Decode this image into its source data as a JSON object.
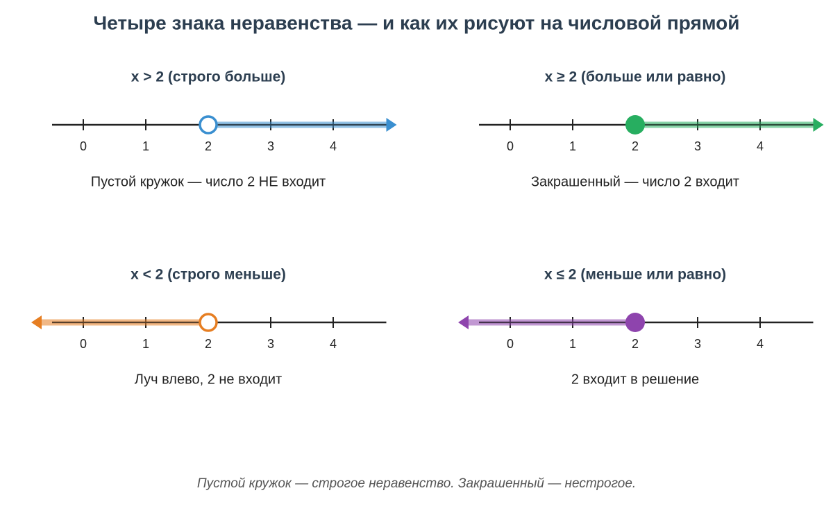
{
  "title": "Четыре знака неравенства — и как их рисуют на числовой прямой",
  "panels": [
    {
      "title": "x > 2 (строго больше)",
      "ticks": [
        0,
        1,
        2,
        3,
        4
      ],
      "xlim": [
        -0.5,
        4.85
      ],
      "point": 2,
      "closed": false,
      "direction": "right",
      "color": "#3a8fd0",
      "caption": "Пустой кружок — число 2 НЕ входит"
    },
    {
      "title": "x ≥ 2 (больше или равно)",
      "ticks": [
        0,
        1,
        2,
        3,
        4
      ],
      "xlim": [
        -0.5,
        4.85
      ],
      "point": 2,
      "closed": true,
      "direction": "right",
      "color": "#27ae60",
      "caption": "Закрашенный — число 2 входит"
    },
    {
      "title": "x < 2 (строго меньше)",
      "ticks": [
        0,
        1,
        2,
        3,
        4
      ],
      "xlim": [
        -0.5,
        4.85
      ],
      "point": 2,
      "closed": false,
      "direction": "left",
      "color": "#e67e22",
      "caption": "Луч влево, 2 не входит"
    },
    {
      "title": "x ≤ 2 (меньше или равно)",
      "ticks": [
        0,
        1,
        2,
        3,
        4
      ],
      "xlim": [
        -0.5,
        4.85
      ],
      "point": 2,
      "closed": true,
      "direction": "left",
      "color": "#8e44ad",
      "caption": "2 входит в решение"
    }
  ],
  "footer": "Пустой кружок — строгое неравенство. Закрашенный — нестрогое."
}
